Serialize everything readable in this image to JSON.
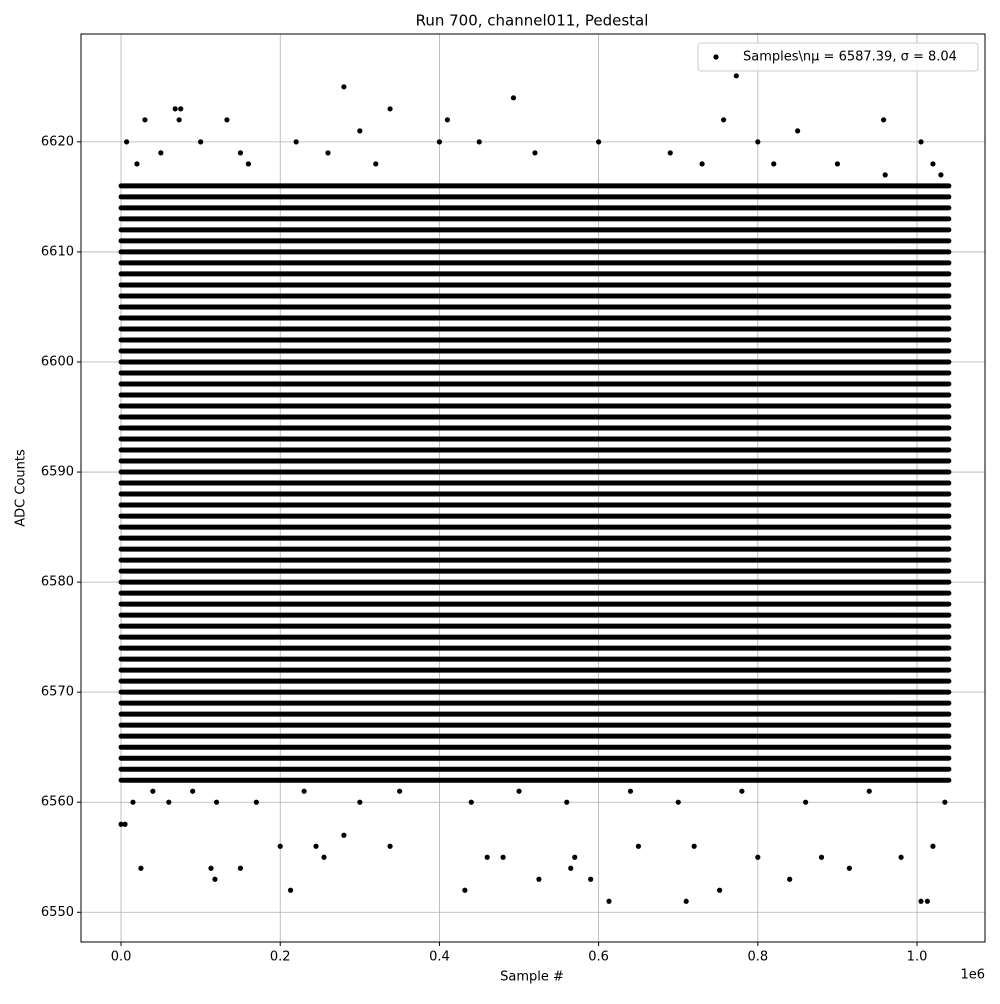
{
  "chart_data": {
    "type": "scatter",
    "title": "Run 700, channel011, Pedestal",
    "xlabel": "Sample #",
    "ylabel": "ADC Counts",
    "x_offset_label": "1e6",
    "xlim": [
      -50300,
      1085400
    ],
    "ylim": [
      6547.3,
      6629.8
    ],
    "xticks": [
      {
        "value": 0,
        "label": "0.0"
      },
      {
        "value": 200000,
        "label": "0.2"
      },
      {
        "value": 400000,
        "label": "0.4"
      },
      {
        "value": 600000,
        "label": "0.6"
      },
      {
        "value": 800000,
        "label": "0.8"
      },
      {
        "value": 1000000,
        "label": "1.0"
      }
    ],
    "yticks": [
      6550,
      6560,
      6570,
      6580,
      6590,
      6600,
      6610,
      6620
    ],
    "grid": true,
    "legend": "upper right",
    "series": [
      {
        "name": "Samples\\nμ = 6587.39, σ = 8.04",
        "color": "#000000",
        "bands": [
          6562,
          6563,
          6564,
          6565,
          6566,
          6567,
          6568,
          6569,
          6570,
          6571,
          6572,
          6573,
          6574,
          6575,
          6576,
          6577,
          6578,
          6579,
          6580,
          6581,
          6582,
          6583,
          6584,
          6585,
          6586,
          6587,
          6588,
          6589,
          6590,
          6591,
          6592,
          6593,
          6594,
          6595,
          6596,
          6597,
          6598,
          6599,
          6600,
          6601,
          6602,
          6603,
          6604,
          6605,
          6606,
          6607,
          6608,
          6609,
          6610,
          6611,
          6612,
          6613,
          6614,
          6615,
          6616
        ],
        "band_x": [
          0,
          1040000
        ],
        "x": [
          0,
          5000,
          7000,
          25000,
          30000,
          68000,
          75000,
          73000,
          100000,
          113000,
          118000,
          133000,
          150000,
          213000,
          280000,
          300000,
          338000,
          338000,
          410000,
          432000,
          493000,
          525000,
          590000,
          613000,
          710000,
          752000,
          757000,
          773000,
          840000,
          850000,
          915000,
          958000,
          1005000,
          1013000,
          1005000,
          1020000,
          200000,
          160000,
          245000,
          255000,
          280000,
          460000,
          480000,
          565000,
          570000,
          650000,
          720000,
          800000,
          880000,
          980000,
          1020000,
          15000,
          40000,
          60000,
          90000,
          120000,
          170000,
          230000,
          300000,
          350000,
          440000,
          500000,
          560000,
          640000,
          700000,
          780000,
          860000,
          940000,
          1035000,
          20000,
          50000,
          150000,
          220000,
          260000,
          320000,
          400000,
          450000,
          520000,
          600000,
          690000,
          730000,
          800000,
          820000,
          900000,
          960000,
          1030000
        ],
        "y": [
          6558,
          6558,
          6620,
          6554,
          6622,
          6623,
          6623,
          6622,
          6620,
          6554,
          6553,
          6622,
          6554,
          6552,
          6625,
          6621,
          6623,
          6556,
          6622,
          6552,
          6624,
          6553,
          6553,
          6551,
          6551,
          6552,
          6622,
          6626,
          6553,
          6621,
          6554,
          6622,
          6551,
          6551,
          6620,
          6618,
          6556,
          6618,
          6556,
          6555,
          6557,
          6555,
          6555,
          6554,
          6555,
          6556,
          6556,
          6555,
          6555,
          6555,
          6556,
          6560,
          6561,
          6560,
          6561,
          6560,
          6560,
          6561,
          6560,
          6561,
          6560,
          6561,
          6560,
          6561,
          6560,
          6561,
          6560,
          6561,
          6560,
          6618,
          6619,
          6619,
          6620,
          6619,
          6618,
          6620,
          6620,
          6619,
          6620,
          6619,
          6618,
          6620,
          6618,
          6618,
          6617,
          6617
        ]
      }
    ]
  }
}
